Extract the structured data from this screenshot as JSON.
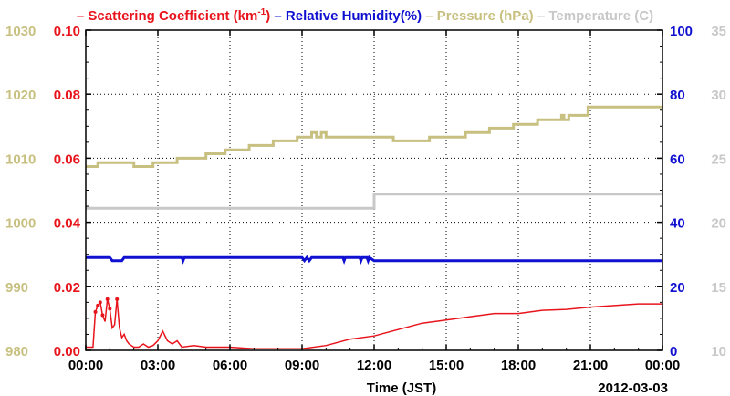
{
  "chart_data": {
    "type": "line",
    "legend": {
      "placement": "top",
      "items": [
        {
          "label": "Scattering Coefficient (km",
          "sup": "-1",
          "suffix": ")",
          "color": "#e8141c"
        },
        {
          "label": "Relative Humidity(%)",
          "color": "#1010d0"
        },
        {
          "label": "Pressure (hPa)",
          "color": "#c8c080"
        },
        {
          "label": "Temperature (C)",
          "color": "#c8c8c8"
        }
      ]
    },
    "xlabel": "Time (JST)",
    "date_label": "2012-03-03",
    "x_range_hours": [
      0,
      24
    ],
    "x_ticks": [
      {
        "h": 0,
        "label": "00:00"
      },
      {
        "h": 3,
        "label": "03:00"
      },
      {
        "h": 6,
        "label": "06:00"
      },
      {
        "h": 9,
        "label": "09:00"
      },
      {
        "h": 12,
        "label": "12:00"
      },
      {
        "h": 15,
        "label": "15:00"
      },
      {
        "h": 18,
        "label": "18:00"
      },
      {
        "h": 21,
        "label": "21:00"
      },
      {
        "h": 24,
        "label": "00:00"
      }
    ],
    "grid": true,
    "axes": {
      "pressure": {
        "side": "left-outer",
        "color": "#c8c080",
        "range": [
          980,
          1030
        ],
        "ticks": [
          "980",
          "990",
          "1000",
          "1010",
          "1020",
          "1030"
        ]
      },
      "scattering": {
        "side": "left-inner",
        "color": "#e8141c",
        "range": [
          0,
          0.1
        ],
        "ticks": [
          "0.00",
          "0.02",
          "0.04",
          "0.06",
          "0.08",
          "0.10"
        ]
      },
      "humidity": {
        "side": "right-inner",
        "color": "#1010d0",
        "range": [
          0,
          100
        ],
        "ticks": [
          "0",
          "20",
          "40",
          "60",
          "80",
          "100"
        ]
      },
      "temperature": {
        "side": "right-outer",
        "color": "#c8c8c8",
        "range": [
          10,
          35
        ],
        "ticks": [
          "10",
          "15",
          "20",
          "25",
          "30",
          "35"
        ]
      }
    },
    "series": [
      {
        "name": "Scattering Coefficient",
        "axis": "scattering",
        "color": "#e8141c",
        "x": [
          0,
          0.15,
          0.3,
          0.4,
          0.5,
          0.6,
          0.7,
          0.8,
          0.9,
          1.0,
          1.1,
          1.2,
          1.3,
          1.4,
          1.5,
          1.6,
          1.7,
          1.8,
          2.0,
          2.2,
          2.4,
          2.6,
          2.8,
          3.0,
          3.2,
          3.4,
          3.6,
          3.8,
          4.0,
          4.5,
          5.0,
          6.0,
          7.0,
          8.0,
          9.0,
          10.0,
          11.0,
          12.0,
          13.0,
          14.0,
          15.0,
          16.0,
          17.0,
          18.0,
          19.0,
          20.0,
          21.0,
          22.0,
          23.0,
          24.0
        ],
        "y": [
          0.001,
          0.001,
          0.001,
          0.012,
          0.014,
          0.015,
          0.011,
          0.009,
          0.016,
          0.013,
          0.007,
          0.008,
          0.016,
          0.007,
          0.004,
          0.005,
          0.003,
          0.002,
          0.001,
          0.001,
          0.002,
          0.001,
          0.0015,
          0.003,
          0.006,
          0.003,
          0.002,
          0.003,
          0.001,
          0.0015,
          0.001,
          0.001,
          0.0005,
          0.0005,
          0.0005,
          0.0015,
          0.0035,
          0.0045,
          0.0065,
          0.0085,
          0.0095,
          0.0105,
          0.0115,
          0.0115,
          0.0125,
          0.0128,
          0.0135,
          0.014,
          0.0145,
          0.0145
        ]
      },
      {
        "name": "Relative Humidity",
        "axis": "humidity",
        "color": "#1010d0",
        "x": [
          0,
          1.0,
          1.1,
          1.5,
          1.6,
          4.0,
          4.05,
          4.1,
          9.0,
          9.1,
          9.2,
          9.3,
          9.4,
          10.7,
          10.75,
          10.8,
          11.4,
          11.45,
          11.5,
          11.7,
          11.75,
          11.8,
          12.0,
          24.0
        ],
        "y": [
          29,
          29,
          28,
          28,
          29,
          29,
          28,
          29,
          29,
          28,
          29,
          28,
          29,
          29,
          28,
          29,
          29,
          28,
          29,
          29,
          28,
          29,
          28,
          28
        ]
      },
      {
        "name": "Pressure",
        "axis": "pressure",
        "color": "#c8c080",
        "x": [
          0,
          0.5,
          0.5,
          2.0,
          2.0,
          2.8,
          2.8,
          3.8,
          3.8,
          5.0,
          5.0,
          5.8,
          5.8,
          6.8,
          6.8,
          7.8,
          7.8,
          8.8,
          8.8,
          9.4,
          9.4,
          9.6,
          9.6,
          9.8,
          9.8,
          10.0,
          10.0,
          12.8,
          12.8,
          14.3,
          14.3,
          15.8,
          15.8,
          16.8,
          16.8,
          17.8,
          17.8,
          18.8,
          18.8,
          19.8,
          19.8,
          19.9,
          19.9,
          20.1,
          20.1,
          20.9,
          20.9,
          24.0
        ],
        "y": [
          1008.7,
          1008.7,
          1009.3,
          1009.3,
          1008.7,
          1008.7,
          1009.3,
          1009.3,
          1010.0,
          1010.0,
          1010.7,
          1010.7,
          1011.3,
          1011.3,
          1012.0,
          1012.0,
          1012.7,
          1012.7,
          1013.3,
          1013.3,
          1014.0,
          1014.0,
          1013.3,
          1013.3,
          1014.0,
          1014.0,
          1013.3,
          1013.3,
          1012.7,
          1012.7,
          1013.3,
          1013.3,
          1014.0,
          1014.0,
          1014.7,
          1014.7,
          1015.3,
          1015.3,
          1016.0,
          1016.0,
          1016.7,
          1016.7,
          1016.0,
          1016.0,
          1016.7,
          1016.7,
          1018.0,
          1018.0
        ]
      },
      {
        "name": "Temperature",
        "axis": "temperature",
        "color": "#c8c8c8",
        "x": [
          0,
          12.0,
          12.0,
          24.0
        ],
        "y": [
          21.1,
          21.1,
          22.2,
          22.2
        ]
      }
    ]
  }
}
